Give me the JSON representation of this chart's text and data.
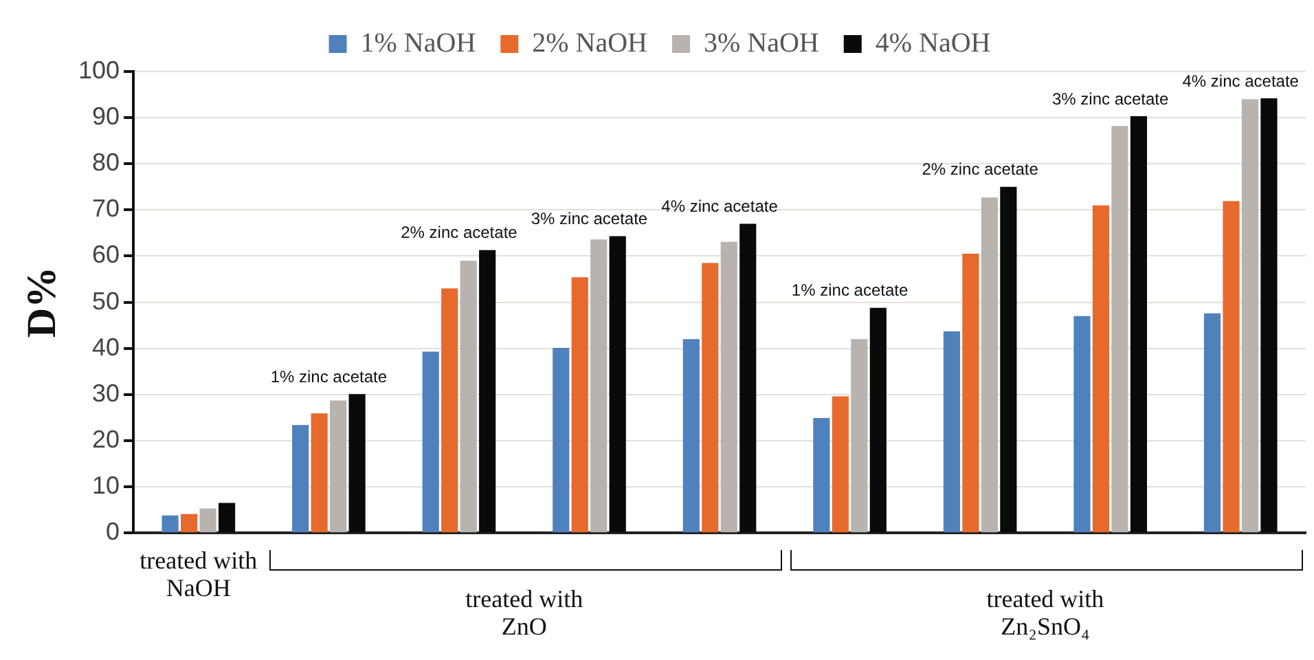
{
  "chart_data": {
    "type": "bar",
    "ylabel": "D%",
    "categories": [
      null,
      null,
      null,
      null,
      null,
      null,
      null,
      null,
      null
    ],
    "series": [
      {
        "name": "1% NaOH",
        "color": "#4f81bd",
        "values": [
          3.8,
          23.4,
          39.3,
          40.1,
          42,
          24.9,
          43.7,
          47,
          47.6
        ]
      },
      {
        "name": "2% NaOH",
        "color": "#e8692c",
        "values": [
          4.1,
          25.9,
          53,
          55.4,
          58.5,
          29.6,
          60.5,
          71,
          71.9
        ]
      },
      {
        "name": "3% NaOH",
        "color": "#b8b3ae",
        "values": [
          5.3,
          28.7,
          59,
          63.6,
          63.1,
          42,
          72.7,
          88.2,
          94
        ]
      },
      {
        "name": "4% NaOH",
        "color": "#0a0a08",
        "values": [
          6.5,
          30.1,
          61.3,
          64.3,
          67,
          48.8,
          75,
          90.3,
          94.2
        ]
      }
    ],
    "ylim": [
      0,
      100
    ],
    "yticks": [
      0,
      10,
      20,
      30,
      40,
      50,
      60,
      70,
      80,
      90,
      100
    ],
    "grid": "y",
    "legend": "top",
    "annotations": [
      "1% zinc acetate",
      "2% zinc acetate",
      "3% zinc acetate",
      "4% zinc acetate",
      "1% zinc acetate",
      "2% zinc acetate",
      "3% zinc acetate",
      "4% zinc acetate",
      "treated with\nNaOH",
      "treated with\nZnO",
      "treated with\nZn₂SnO₄"
    ]
  }
}
